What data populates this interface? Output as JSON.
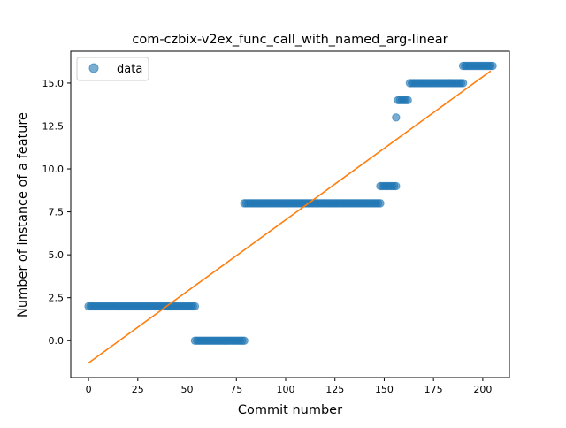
{
  "chart_data": {
    "type": "scatter",
    "title": "com-czbix-v2ex_func_call_with_named_arg-linear",
    "xlabel": "Commit number",
    "ylabel": "Number of instance of a feature",
    "xlim": [
      -9,
      213.5
    ],
    "ylim": [
      -2.15,
      16.85
    ],
    "x_ticks": [
      0,
      25,
      50,
      75,
      100,
      125,
      150,
      175,
      200
    ],
    "x_tick_labels": [
      "0",
      "25",
      "50",
      "75",
      "100",
      "125",
      "150",
      "175",
      "200"
    ],
    "y_ticks": [
      0.0,
      2.5,
      5.0,
      7.5,
      10.0,
      12.5,
      15.0
    ],
    "y_tick_labels": [
      "0.0",
      "2.5",
      "5.0",
      "7.5",
      "10.0",
      "12.5",
      "15.0"
    ],
    "grid": false,
    "legend_position": "top-left",
    "colors": {
      "data": "#1f77b4",
      "fit": "#ff7f0e"
    },
    "series": [
      {
        "name": "data",
        "kind": "scatter",
        "segments": [
          {
            "x_start": 0,
            "x_end": 54,
            "y": 2
          },
          {
            "x_start": 54,
            "x_end": 79,
            "y": 0
          },
          {
            "x_start": 79,
            "x_end": 148,
            "y": 8
          },
          {
            "x_start": 148,
            "x_end": 156,
            "y": 9
          },
          {
            "x_start": 156,
            "x_end": 156,
            "y": 13
          },
          {
            "x_start": 157,
            "x_end": 162,
            "y": 14
          },
          {
            "x_start": 163,
            "x_end": 190,
            "y": 15
          },
          {
            "x_start": 190,
            "x_end": 205,
            "y": 16
          }
        ]
      },
      {
        "kind": "line",
        "points": [
          [
            0,
            -1.3
          ],
          [
            204,
            15.7
          ]
        ]
      }
    ]
  }
}
